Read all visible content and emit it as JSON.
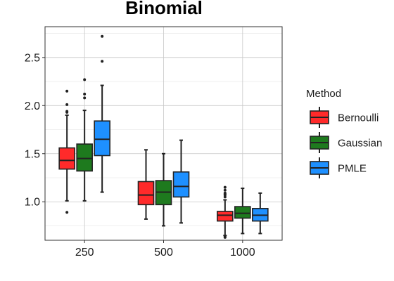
{
  "chart_data": {
    "type": "box",
    "title": "Binomial",
    "xlabel": "",
    "ylabel": "",
    "categories": [
      "250",
      "500",
      "1000"
    ],
    "ylim": [
      0.6,
      2.82
    ],
    "yticks": [
      1.0,
      1.5,
      2.0,
      2.5
    ],
    "ytick_labels": [
      "1.0",
      "1.5",
      "2.0",
      "2.5"
    ],
    "grid": true,
    "legend": {
      "title": "Method",
      "position": "right"
    },
    "series": [
      {
        "name": "Bernoulli",
        "color": "#ff2a2a",
        "boxes": [
          {
            "whisker_low": 1.01,
            "q1": 1.34,
            "median": 1.43,
            "q3": 1.56,
            "whisker_high": 1.9,
            "outliers": [
              0.89,
              1.93,
              1.94,
              2.01,
              2.15
            ]
          },
          {
            "whisker_low": 0.82,
            "q1": 0.97,
            "median": 1.07,
            "q3": 1.21,
            "whisker_high": 1.54,
            "outliers": []
          },
          {
            "whisker_low": 0.65,
            "q1": 0.8,
            "median": 0.86,
            "q3": 0.9,
            "whisker_high": 1.02,
            "outliers": [
              0.63,
              0.64,
              1.05,
              1.07,
              1.08,
              1.09,
              1.12,
              1.15
            ]
          }
        ]
      },
      {
        "name": "Gaussian",
        "color": "#1e7a1e",
        "boxes": [
          {
            "whisker_low": 1.01,
            "q1": 1.32,
            "median": 1.45,
            "q3": 1.6,
            "whisker_high": 1.95,
            "outliers": [
              2.08,
              2.12,
              2.27
            ]
          },
          {
            "whisker_low": 0.75,
            "q1": 0.97,
            "median": 1.1,
            "q3": 1.22,
            "whisker_high": 1.5,
            "outliers": []
          },
          {
            "whisker_low": 0.67,
            "q1": 0.83,
            "median": 0.88,
            "q3": 0.95,
            "whisker_high": 1.14,
            "outliers": []
          }
        ]
      },
      {
        "name": "PMLE",
        "color": "#1e90ff",
        "boxes": [
          {
            "whisker_low": 1.1,
            "q1": 1.48,
            "median": 1.65,
            "q3": 1.84,
            "whisker_high": 2.21,
            "outliers": [
              2.46,
              2.72
            ]
          },
          {
            "whisker_low": 0.78,
            "q1": 1.05,
            "median": 1.16,
            "q3": 1.31,
            "whisker_high": 1.64,
            "outliers": []
          },
          {
            "whisker_low": 0.67,
            "q1": 0.8,
            "median": 0.86,
            "q3": 0.93,
            "whisker_high": 1.09,
            "outliers": []
          }
        ]
      }
    ]
  }
}
